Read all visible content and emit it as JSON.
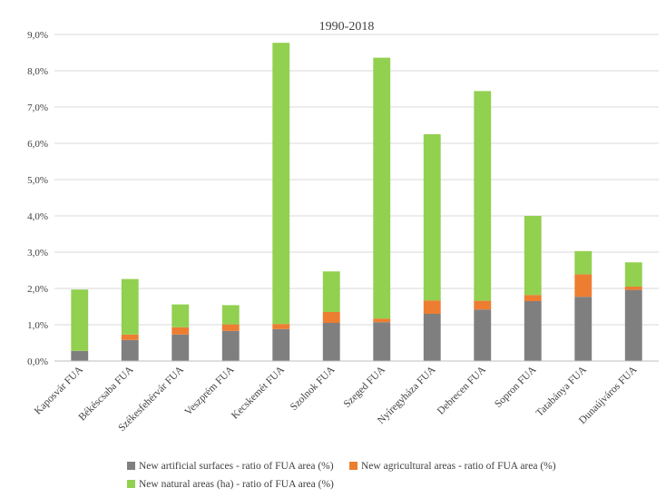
{
  "chart_data": {
    "type": "bar",
    "stacked": true,
    "title": "1990-2018",
    "xlabel": "",
    "ylabel": "",
    "ylim": [
      0,
      9
    ],
    "y_tick_labels": [
      "0,0%",
      "1,0%",
      "2,0%",
      "3,0%",
      "4,0%",
      "5,0%",
      "6,0%",
      "7,0%",
      "8,0%",
      "9,0%"
    ],
    "grid": true,
    "legend_position": "bottom",
    "categories": [
      "Kaposvár FUA",
      "Békéscsaba FUA",
      "Székesfehérvár FUA",
      "Veszprém FUA",
      "Kecskemét FUA",
      "Szolnok FUA",
      "Szeged FUA",
      "Nyíregyháza FUA",
      "Debrecen FUA",
      "Sopron FUA",
      "Tatabánya FUA",
      "Dunaújváros FUA"
    ],
    "series": [
      {
        "name": "New artificial surfaces - ratio of FUA area (%)",
        "color": "#7f7f7f",
        "values": [
          0.28,
          0.58,
          0.73,
          0.83,
          0.88,
          1.05,
          1.07,
          1.3,
          1.42,
          1.65,
          1.77,
          1.96
        ]
      },
      {
        "name": "New agricultural areas - ratio of FUA area (%)",
        "color": "#ed7d31",
        "values": [
          0.0,
          0.15,
          0.2,
          0.18,
          0.14,
          0.3,
          0.1,
          0.37,
          0.24,
          0.17,
          0.62,
          0.09
        ]
      },
      {
        "name": "New natural areas (ha) - ratio of FUA area (%)",
        "color": "#92d050",
        "values": [
          1.69,
          1.53,
          0.63,
          0.53,
          7.75,
          1.12,
          7.19,
          4.58,
          5.78,
          2.18,
          0.64,
          0.67
        ]
      }
    ]
  }
}
